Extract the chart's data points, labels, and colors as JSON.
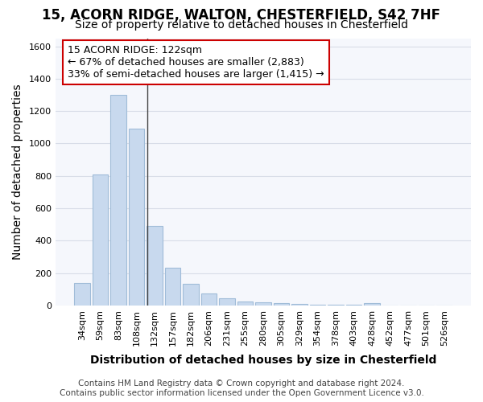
{
  "title1": "15, ACORN RIDGE, WALTON, CHESTERFIELD, S42 7HF",
  "title2": "Size of property relative to detached houses in Chesterfield",
  "xlabel": "Distribution of detached houses by size in Chesterfield",
  "ylabel": "Number of detached properties",
  "categories": [
    "34sqm",
    "59sqm",
    "83sqm",
    "108sqm",
    "132sqm",
    "157sqm",
    "182sqm",
    "206sqm",
    "231sqm",
    "255sqm",
    "280sqm",
    "305sqm",
    "329sqm",
    "354sqm",
    "378sqm",
    "403sqm",
    "428sqm",
    "452sqm",
    "477sqm",
    "501sqm",
    "526sqm"
  ],
  "values": [
    140,
    810,
    1300,
    1090,
    490,
    235,
    135,
    75,
    45,
    25,
    20,
    15,
    10,
    2,
    2,
    2,
    15,
    1,
    1,
    1,
    1
  ],
  "bar_color": "#c8d9ee",
  "bar_edge_color": "#a0bcd8",
  "ylim": [
    0,
    1650
  ],
  "yticks": [
    0,
    200,
    400,
    600,
    800,
    1000,
    1200,
    1400,
    1600
  ],
  "annotation_text": "15 ACORN RIDGE: 122sqm\n← 67% of detached houses are smaller (2,883)\n33% of semi-detached houses are larger (1,415) →",
  "annotation_box_facecolor": "#ffffff",
  "annotation_box_edgecolor": "#cc0000",
  "footer1": "Contains HM Land Registry data © Crown copyright and database right 2024.",
  "footer2": "Contains public sector information licensed under the Open Government Licence v3.0.",
  "background_color": "#ffffff",
  "plot_background": "#f5f7fc",
  "grid_color": "#d8dde8",
  "title1_fontsize": 12,
  "title2_fontsize": 10,
  "axis_label_fontsize": 10,
  "tick_fontsize": 8,
  "annotation_fontsize": 9,
  "footer_fontsize": 7.5
}
